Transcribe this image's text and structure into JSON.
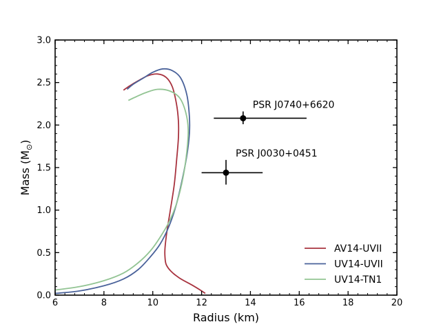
{
  "chart_data": {
    "type": "line",
    "xlabel": "Radius (km)",
    "ylabel_main": "Mass (M",
    "ylabel_sub": "⊙",
    "ylabel_close": ")",
    "xlim": [
      6,
      20
    ],
    "ylim": [
      0.0,
      3.0
    ],
    "xticks": [
      6,
      8,
      10,
      12,
      14,
      16,
      18,
      20
    ],
    "xtick_labels": [
      "6",
      "8",
      "10",
      "12",
      "14",
      "16",
      "18",
      "20"
    ],
    "yticks": [
      0.0,
      0.5,
      1.0,
      1.5,
      2.0,
      2.5,
      3.0
    ],
    "ytick_labels": [
      "0.0",
      "0.5",
      "1.0",
      "1.5",
      "2.0",
      "2.5",
      "3.0"
    ],
    "grid": false,
    "legend_position": "lower-right",
    "series": [
      {
        "name": "AV14-UVII",
        "color": "#a8323e",
        "points": [
          [
            12.15,
            0.02
          ],
          [
            12.0,
            0.05
          ],
          [
            11.6,
            0.12
          ],
          [
            11.1,
            0.2
          ],
          [
            10.75,
            0.28
          ],
          [
            10.55,
            0.36
          ],
          [
            10.5,
            0.45
          ],
          [
            10.5,
            0.55
          ],
          [
            10.58,
            0.75
          ],
          [
            10.72,
            1.0
          ],
          [
            10.88,
            1.3
          ],
          [
            10.98,
            1.6
          ],
          [
            11.05,
            1.85
          ],
          [
            11.05,
            2.05
          ],
          [
            10.97,
            2.25
          ],
          [
            10.8,
            2.45
          ],
          [
            10.55,
            2.56
          ],
          [
            10.2,
            2.6
          ],
          [
            9.8,
            2.58
          ],
          [
            9.4,
            2.52
          ],
          [
            9.05,
            2.46
          ],
          [
            8.8,
            2.41
          ]
        ]
      },
      {
        "name": "UV14-UVII",
        "color": "#4a629a",
        "points": [
          [
            6.0,
            0.02
          ],
          [
            7.0,
            0.05
          ],
          [
            8.0,
            0.11
          ],
          [
            8.8,
            0.19
          ],
          [
            9.4,
            0.3
          ],
          [
            9.9,
            0.45
          ],
          [
            10.3,
            0.6
          ],
          [
            10.65,
            0.8
          ],
          [
            10.95,
            1.05
          ],
          [
            11.2,
            1.35
          ],
          [
            11.4,
            1.65
          ],
          [
            11.5,
            1.9
          ],
          [
            11.5,
            2.1
          ],
          [
            11.4,
            2.35
          ],
          [
            11.15,
            2.55
          ],
          [
            10.8,
            2.64
          ],
          [
            10.4,
            2.66
          ],
          [
            10.0,
            2.62
          ],
          [
            9.6,
            2.55
          ],
          [
            9.2,
            2.48
          ],
          [
            8.95,
            2.42
          ]
        ]
      },
      {
        "name": "UV14-TN1",
        "color": "#92c493",
        "points": [
          [
            6.0,
            0.06
          ],
          [
            7.0,
            0.1
          ],
          [
            8.0,
            0.17
          ],
          [
            8.8,
            0.26
          ],
          [
            9.4,
            0.38
          ],
          [
            9.9,
            0.52
          ],
          [
            10.3,
            0.68
          ],
          [
            10.7,
            0.88
          ],
          [
            11.0,
            1.1
          ],
          [
            11.25,
            1.4
          ],
          [
            11.4,
            1.7
          ],
          [
            11.45,
            1.95
          ],
          [
            11.35,
            2.15
          ],
          [
            11.1,
            2.32
          ],
          [
            10.7,
            2.4
          ],
          [
            10.2,
            2.42
          ],
          [
            9.7,
            2.38
          ],
          [
            9.3,
            2.33
          ],
          [
            9.0,
            2.29
          ]
        ]
      }
    ],
    "data_points": [
      {
        "label": "PSR J0740+6620",
        "x": 13.7,
        "y": 2.08,
        "xerr": [
          12.5,
          16.3
        ],
        "yerr": [
          2.01,
          2.16
        ]
      },
      {
        "label": "PSR J0030+0451",
        "x": 13.0,
        "y": 1.44,
        "xerr": [
          12.0,
          14.5
        ],
        "yerr": [
          1.3,
          1.59
        ]
      }
    ]
  }
}
